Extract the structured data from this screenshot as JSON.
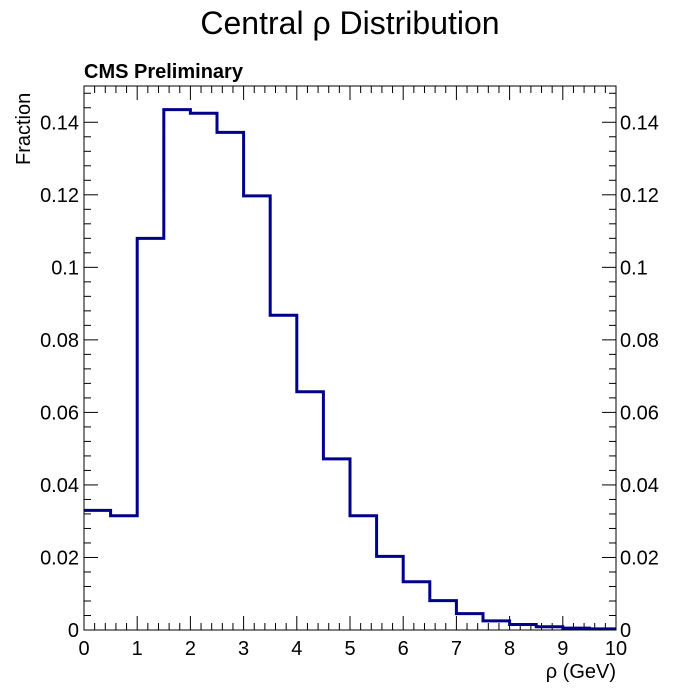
{
  "chart_data": {
    "type": "histogram",
    "title": "Central ρ Distribution",
    "annotation": "CMS Preliminary",
    "xlabel": "ρ (GeV)",
    "ylabel": "Fraction",
    "xlim": [
      0,
      10
    ],
    "ylim": [
      0,
      0.15
    ],
    "bin_edges": [
      0,
      0.5,
      1,
      1.5,
      2,
      2.5,
      3,
      3.5,
      4,
      4.5,
      5,
      5.5,
      6,
      6.5,
      7,
      7.5,
      8,
      8.5,
      9,
      9.5,
      10
    ],
    "values": [
      0.033,
      0.0315,
      0.108,
      0.1435,
      0.1425,
      0.1372,
      0.1197,
      0.0868,
      0.0657,
      0.0472,
      0.0315,
      0.0203,
      0.0133,
      0.0081,
      0.0045,
      0.0025,
      0.0015,
      0.0009,
      0.0005,
      0.0003
    ],
    "x_ticks": [
      "0",
      "1",
      "2",
      "3",
      "4",
      "5",
      "6",
      "7",
      "8",
      "9",
      "10"
    ],
    "y_ticks": [
      "0",
      "0.02",
      "0.04",
      "0.06",
      "0.08",
      "0.1",
      "0.12",
      "0.14"
    ],
    "y_ticks_right": [
      "0",
      "0.02",
      "0.04",
      "0.06",
      "0.08",
      "0.1",
      "0.12",
      "0.14"
    ],
    "line_color": "#00008b",
    "grid": false
  }
}
